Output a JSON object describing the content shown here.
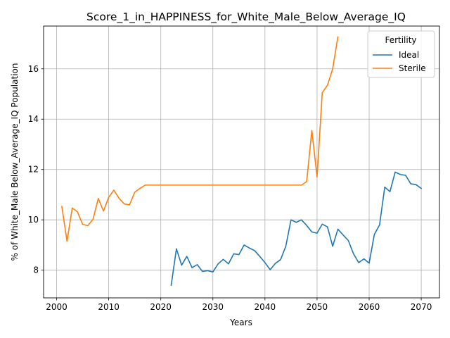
{
  "chart_data": {
    "type": "line",
    "title": "Score_1_in_HAPPINESS_for_White_Male_Below_Average_IQ",
    "xlabel": "Years",
    "ylabel": "% of White_Male Below_Average_IQ Population",
    "xlim": [
      1997.5,
      2073.5
    ],
    "ylim": [
      6.9,
      17.7
    ],
    "xticks": [
      2000,
      2010,
      2020,
      2030,
      2040,
      2050,
      2060,
      2070
    ],
    "yticks": [
      8,
      10,
      12,
      14,
      16
    ],
    "grid": true,
    "legend": {
      "title": "Fertility",
      "placement": "top-right"
    },
    "series": [
      {
        "name": "Ideal",
        "color": "#1f77b4",
        "x": [
          2022,
          2023,
          2024,
          2025,
          2026,
          2027,
          2028,
          2029,
          2030,
          2031,
          2032,
          2033,
          2034,
          2035,
          2036,
          2037,
          2038,
          2039,
          2040,
          2041,
          2042,
          2043,
          2044,
          2045,
          2046,
          2047,
          2048,
          2049,
          2050,
          2051,
          2052,
          2053,
          2054,
          2055,
          2056,
          2057,
          2058,
          2059,
          2060,
          2061,
          2062,
          2063,
          2064,
          2065,
          2066,
          2067,
          2068,
          2069,
          2070
        ],
        "values": [
          7.4,
          8.85,
          8.2,
          8.55,
          8.1,
          8.22,
          7.95,
          7.98,
          7.93,
          8.25,
          8.43,
          8.25,
          8.65,
          8.62,
          9.0,
          8.88,
          8.78,
          8.55,
          8.3,
          8.02,
          8.27,
          8.42,
          8.95,
          10.0,
          9.9,
          10.0,
          9.78,
          9.52,
          9.47,
          9.83,
          9.72,
          8.95,
          9.63,
          9.4,
          9.18,
          8.65,
          8.3,
          8.45,
          8.28,
          9.42,
          9.8,
          11.3,
          11.12,
          11.9,
          11.8,
          11.77,
          11.43,
          11.4,
          11.25
        ]
      },
      {
        "name": "Sterile",
        "color": "#ff7f0e",
        "x": [
          2001,
          2002,
          2003,
          2004,
          2005,
          2006,
          2007,
          2008,
          2009,
          2010,
          2011,
          2012,
          2013,
          2014,
          2015,
          2016,
          2017,
          2018,
          2019,
          2020,
          2021,
          2022,
          2023,
          2024,
          2025,
          2026,
          2027,
          2028,
          2029,
          2030,
          2031,
          2032,
          2033,
          2034,
          2035,
          2036,
          2037,
          2038,
          2039,
          2040,
          2041,
          2042,
          2043,
          2044,
          2045,
          2046,
          2047,
          2048,
          2049,
          2050,
          2051,
          2052,
          2053,
          2054
        ],
        "values": [
          10.53,
          9.15,
          10.47,
          10.32,
          9.82,
          9.77,
          10.03,
          10.85,
          10.35,
          10.9,
          11.18,
          10.85,
          10.63,
          10.6,
          11.1,
          11.25,
          11.38,
          11.38,
          11.38,
          11.38,
          11.38,
          11.38,
          11.38,
          11.38,
          11.38,
          11.38,
          11.38,
          11.38,
          11.38,
          11.38,
          11.38,
          11.38,
          11.38,
          11.38,
          11.38,
          11.38,
          11.38,
          11.38,
          11.38,
          11.38,
          11.38,
          11.38,
          11.38,
          11.38,
          11.38,
          11.38,
          11.38,
          11.52,
          13.55,
          11.7,
          15.05,
          15.35,
          16.0,
          17.27
        ]
      }
    ]
  }
}
